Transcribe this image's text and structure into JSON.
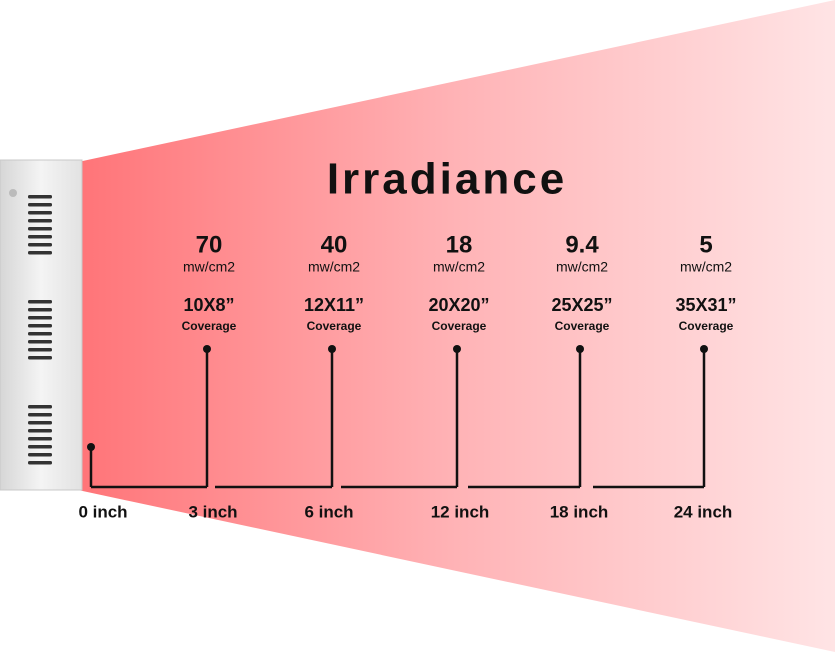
{
  "title": "Irradiance",
  "columns": [
    {
      "value": "70",
      "unit": "mw/cm2",
      "coverage": "10X8”",
      "coverage_label": "Coverage"
    },
    {
      "value": "40",
      "unit": "mw/cm2",
      "coverage": "12X11”",
      "coverage_label": "Coverage"
    },
    {
      "value": "18",
      "unit": "mw/cm2",
      "coverage": "20X20”",
      "coverage_label": "Coverage"
    },
    {
      "value": "9.4",
      "unit": "mw/cm2",
      "coverage": "25X25”",
      "coverage_label": "Coverage"
    },
    {
      "value": "5",
      "unit": "mw/cm2",
      "coverage": "35X31”",
      "coverage_label": "Coverage"
    }
  ],
  "distances": [
    "0 inch",
    "3 inch",
    "6 inch",
    "12 inch",
    "18 inch",
    "24 inch"
  ]
}
